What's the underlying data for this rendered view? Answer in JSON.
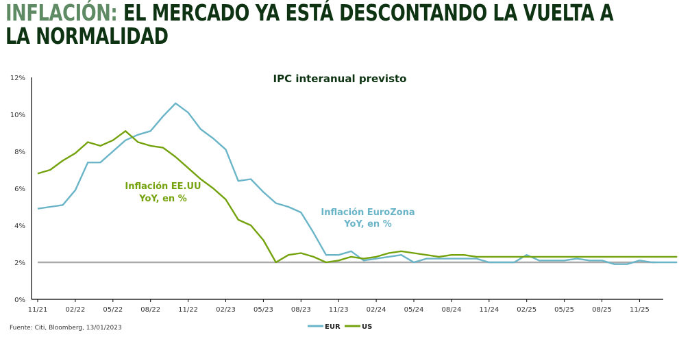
{
  "header": {
    "title_highlight": "INFLACIÓN:",
    "title_rest": " EL MERCADO YA ESTÁ DESCONTANDO LA VUELTA A LA NORMALIDAD"
  },
  "source": "Fuente: Citi, Bloomberg, 13/01/2023",
  "chart_data": {
    "type": "line",
    "title": "IPC interanual previsto",
    "xlabel": "",
    "ylabel": "",
    "ylim": [
      0,
      12
    ],
    "yticks": [
      "0%",
      "2%",
      "4%",
      "6%",
      "8%",
      "10%",
      "12%"
    ],
    "xticks": [
      "11/21",
      "02/22",
      "05/22",
      "08/22",
      "11/22",
      "02/23",
      "05/23",
      "08/23",
      "11/23",
      "02/24",
      "05/24",
      "08/24",
      "11/24",
      "02/25",
      "05/25",
      "08/25",
      "11/25"
    ],
    "reference_line": 2,
    "legend": [
      "EUR",
      "US"
    ],
    "legend_position": "bottom",
    "annotations": [
      {
        "text": [
          "Inflación EE.UU",
          "YoY, en %"
        ],
        "series": "US"
      },
      {
        "text": [
          "Inflación EuroZona",
          "YoY, en %"
        ],
        "series": "EUR"
      }
    ],
    "series": [
      {
        "name": "EUR",
        "color": "#6ab4c8",
        "values": [
          4.9,
          5.0,
          5.1,
          5.9,
          7.4,
          7.4,
          8.0,
          8.6,
          8.9,
          9.1,
          9.9,
          10.6,
          10.1,
          9.2,
          8.7,
          8.1,
          6.4,
          6.5,
          5.8,
          5.2,
          5.0,
          4.7,
          3.6,
          2.4,
          2.4,
          2.6,
          2.1,
          2.2,
          2.3,
          2.4,
          2.0,
          2.2,
          2.2,
          2.2,
          2.2,
          2.2,
          2.0,
          2.0,
          2.0,
          2.4,
          2.1,
          2.1,
          2.1,
          2.2,
          2.1,
          2.1,
          1.9,
          1.9,
          2.1,
          2.0,
          2.0,
          2.0
        ]
      },
      {
        "name": "US",
        "color": "#73a20c",
        "values": [
          6.8,
          7.0,
          7.5,
          7.9,
          8.5,
          8.3,
          8.6,
          9.1,
          8.5,
          8.3,
          8.2,
          7.7,
          7.1,
          6.5,
          6.0,
          5.4,
          4.3,
          4.0,
          3.2,
          2.0,
          2.4,
          2.5,
          2.3,
          2.0,
          2.1,
          2.3,
          2.2,
          2.3,
          2.5,
          2.6,
          2.5,
          2.4,
          2.3,
          2.4,
          2.4,
          2.3,
          2.3,
          2.3,
          2.3,
          2.3,
          2.3,
          2.3,
          2.3,
          2.3,
          2.3,
          2.3,
          2.3,
          2.3,
          2.3,
          2.3,
          2.3,
          2.3
        ]
      }
    ]
  }
}
